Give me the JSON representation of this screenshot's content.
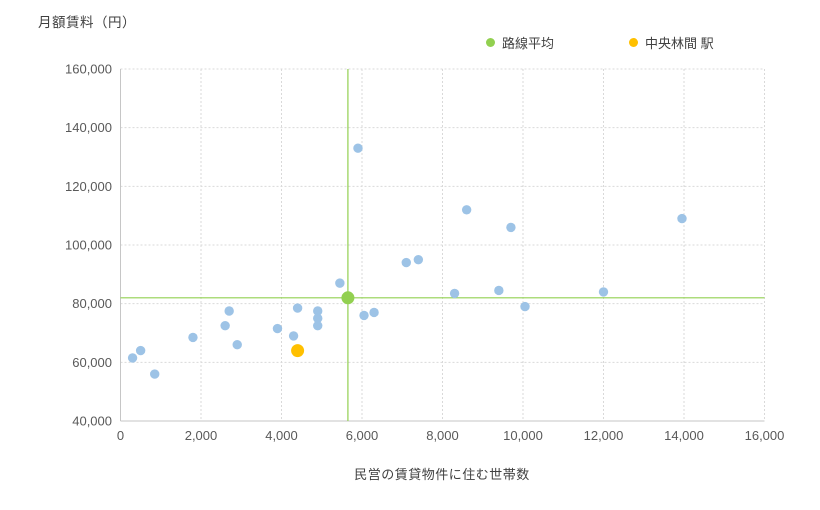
{
  "chart_data": {
    "type": "scatter",
    "title": "",
    "y_axis_title": "月額賃料（円）",
    "x_axis_title": "民営の賃貸物件に住む世帯数",
    "xlim": [
      0,
      16000
    ],
    "ylim": [
      40000,
      160000
    ],
    "x_ticks": [
      0,
      2000,
      4000,
      6000,
      8000,
      10000,
      12000,
      14000,
      16000
    ],
    "y_ticks": [
      40000,
      60000,
      80000,
      100000,
      120000,
      140000,
      160000
    ],
    "grid": true,
    "legend_position": "top-right",
    "legend": [
      {
        "label": "路線平均",
        "color": "#92D050"
      },
      {
        "label": "中央林間 駅",
        "color": "#FFC000"
      }
    ],
    "series": [
      {
        "name": "stations",
        "label": "",
        "color": "#9DC3E6",
        "marker": "circle",
        "points": [
          [
            300,
            61500
          ],
          [
            500,
            64000
          ],
          [
            850,
            56000
          ],
          [
            1800,
            68500
          ],
          [
            2600,
            72500
          ],
          [
            2700,
            77500
          ],
          [
            2900,
            66000
          ],
          [
            3900,
            71500
          ],
          [
            4300,
            69000
          ],
          [
            4400,
            78500
          ],
          [
            4900,
            77500
          ],
          [
            4900,
            75000
          ],
          [
            4900,
            72500
          ],
          [
            5450,
            87000
          ],
          [
            5900,
            133000
          ],
          [
            6050,
            76000
          ],
          [
            6300,
            77000
          ],
          [
            7100,
            94000
          ],
          [
            7400,
            95000
          ],
          [
            8300,
            83500
          ],
          [
            8600,
            112000
          ],
          [
            9400,
            84500
          ],
          [
            9700,
            106000
          ],
          [
            10050,
            79000
          ],
          [
            12000,
            84000
          ],
          [
            13950,
            109000
          ]
        ]
      },
      {
        "name": "route-average",
        "label": "路線平均",
        "color": "#92D050",
        "marker": "circle",
        "crosshair": true,
        "points": [
          [
            5650,
            82000
          ]
        ]
      },
      {
        "name": "selected-station",
        "label": "中央林間 駅",
        "color": "#FFC000",
        "marker": "circle",
        "points": [
          [
            4400,
            64000
          ]
        ]
      }
    ],
    "style_colors": {
      "gridline": "#D9D9D9",
      "axis_line": "#C6C6C6",
      "tick_text": "#595959",
      "title_text": "#404040",
      "crosshair_line": "#92D050"
    }
  }
}
